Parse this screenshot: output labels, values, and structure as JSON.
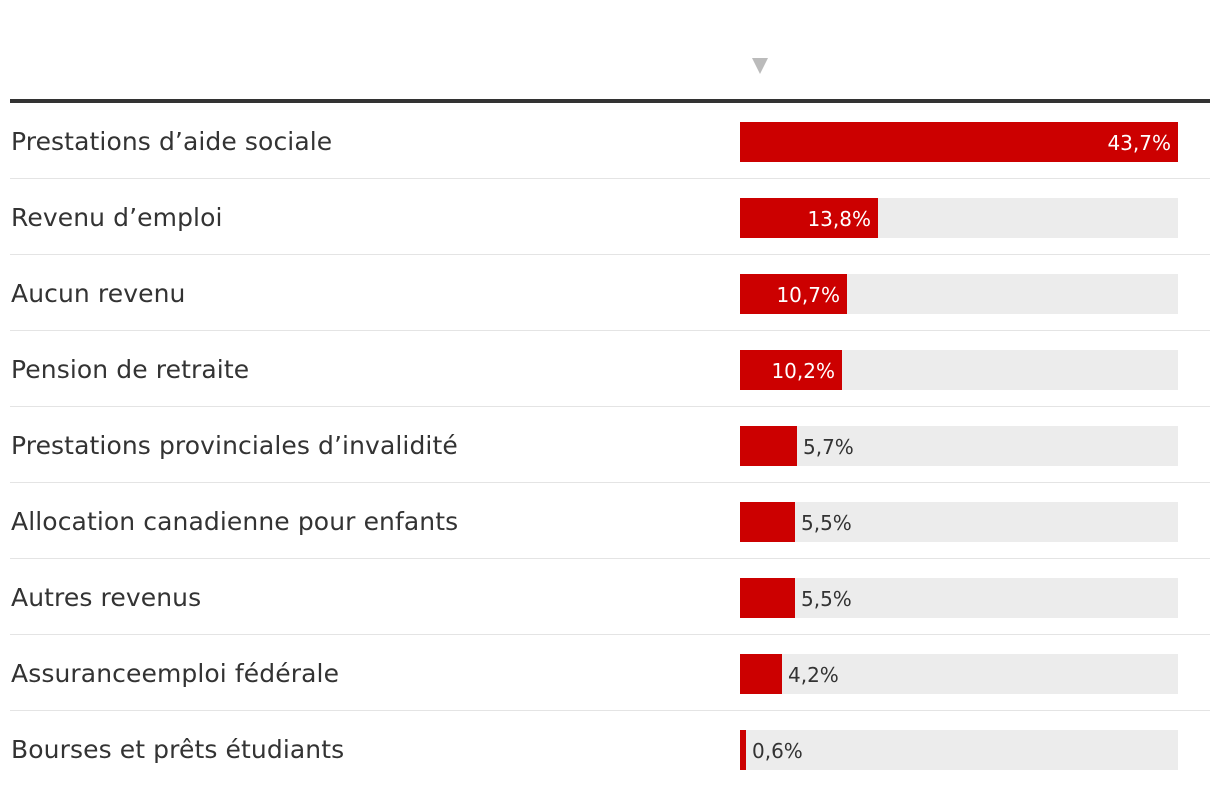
{
  "chart_data": {
    "type": "bar",
    "orientation": "horizontal",
    "unit": "%",
    "xlim": [
      0,
      43.7
    ],
    "sort_order": "descending",
    "categories": [
      "Prestations d’aide sociale",
      "Revenu d’emploi",
      "Aucun revenu",
      "Pension de retraite",
      "Prestations provinciales d’invalidité",
      "Allocation canadienne pour enfants",
      "Autres revenus",
      "Assuranceemploi fédérale",
      "Bourses et prêts étudiants"
    ],
    "values": [
      43.7,
      13.8,
      10.7,
      10.2,
      5.7,
      5.5,
      5.5,
      4.2,
      0.6
    ],
    "value_labels": [
      "43,7%",
      "13,8%",
      "10,7%",
      "10,2%",
      "5,7%",
      "5,5%",
      "5,5%",
      "4,2%",
      "0,6%"
    ]
  },
  "header": {
    "sort_icon": "sort-descending-triangle-icon"
  },
  "colors": {
    "bar": "#cc0000",
    "track": "#ececec",
    "rule": "#333333",
    "divider": "#e4e4e4",
    "sort_icon": "#bbbbbb"
  }
}
